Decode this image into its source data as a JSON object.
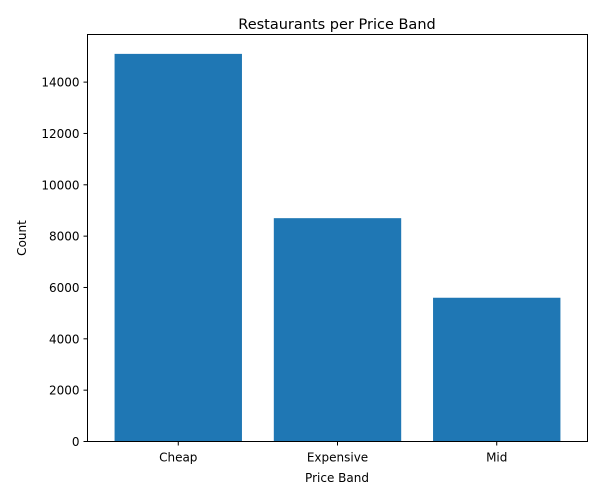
{
  "chart_data": {
    "type": "bar",
    "title": "Restaurants per Price Band",
    "xlabel": "Price Band",
    "ylabel": "Count",
    "categories": [
      "Cheap",
      "Expensive",
      "Mid"
    ],
    "values": [
      15100,
      8700,
      5600
    ],
    "ylim": [
      0,
      15855
    ],
    "yticks": [
      0,
      2000,
      4000,
      6000,
      8000,
      10000,
      12000,
      14000
    ],
    "grid": false,
    "legend": "none",
    "bar_color": "#1f77b4"
  }
}
